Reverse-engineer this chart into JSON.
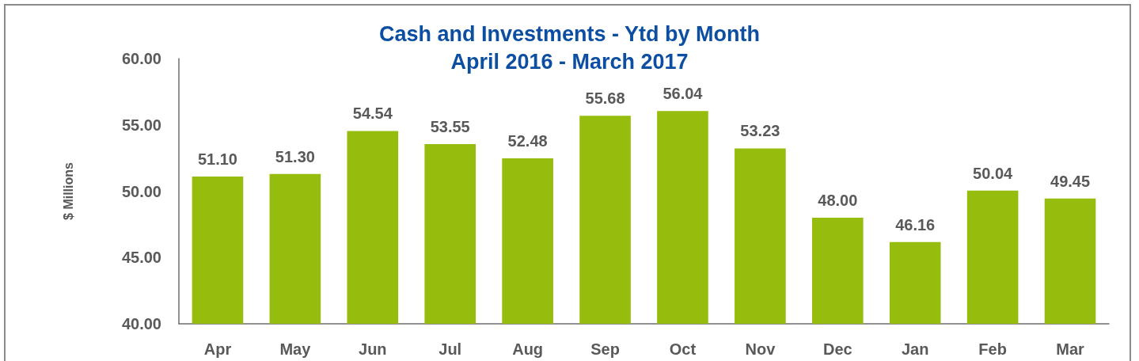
{
  "chart_data": {
    "type": "bar",
    "title": "Cash and Investments - Ytd by Month",
    "subtitle": "April 2016 - March 2017",
    "ylabel": "$ Millions",
    "categories": [
      "Apr",
      "May",
      "Jun",
      "Jul",
      "Aug",
      "Sep",
      "Oct",
      "Nov",
      "Dec",
      "Jan",
      "Feb",
      "Mar"
    ],
    "values": [
      51.1,
      51.3,
      54.54,
      53.55,
      52.48,
      55.68,
      56.04,
      53.23,
      48.0,
      46.16,
      50.04,
      49.45
    ],
    "value_labels": [
      "51.10",
      "51.30",
      "54.54",
      "53.55",
      "52.48",
      "55.68",
      "56.04",
      "53.23",
      "48.00",
      "46.16",
      "50.04",
      "49.45"
    ],
    "color": "#96bd0d",
    "ylim": [
      40,
      60
    ],
    "yticks": [
      {
        "value": 40,
        "label": "40.00"
      },
      {
        "value": 45,
        "label": "45.00"
      },
      {
        "value": 50,
        "label": "50.00"
      },
      {
        "value": 55,
        "label": "55.00"
      },
      {
        "value": 60,
        "label": "60.00"
      }
    ],
    "grid": false
  }
}
